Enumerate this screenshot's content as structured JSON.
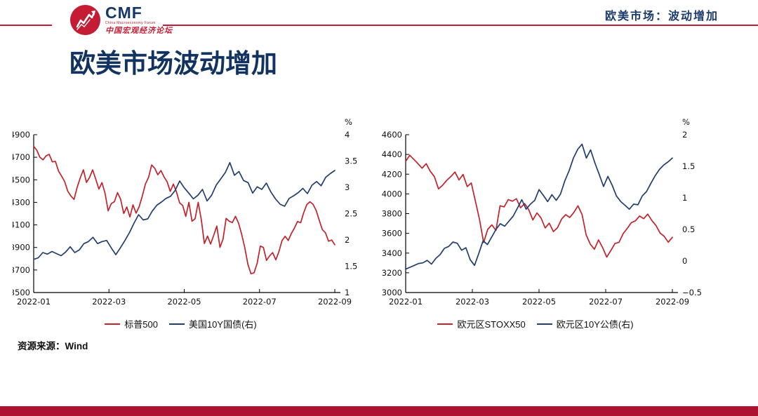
{
  "header": {
    "logo": {
      "acronym": "CMF",
      "subtitle_en": "China Macroeconomy Forum",
      "subtitle_cn": "中国宏观经济论坛"
    },
    "section_label": "欧美市场：波动增加"
  },
  "title": "欧美市场波动增加",
  "source_note": "资源来源：Wind",
  "colors": {
    "accent_red": "#c01d3a",
    "bottom_bar": "#ad1230",
    "line_red": "#c3222a",
    "line_blue": "#223d6f",
    "navy_text": "#123360"
  },
  "chart_data": [
    {
      "type": "line",
      "title": "",
      "x_ticks": [
        "2022-01",
        "2022-03",
        "2022-05",
        "2022-07",
        "2022-09"
      ],
      "left_axis": {
        "min": 3500,
        "max": 4900,
        "step": 200
      },
      "right_axis": {
        "min": 1,
        "max": 4,
        "step": 0.5,
        "unit": "%"
      },
      "grid": false,
      "legend_position": "bottom",
      "series": [
        {
          "name": "标普500",
          "axis": "left",
          "color": "#c3222a",
          "values": [
            4797,
            4763,
            4700,
            4677,
            4713,
            4726,
            4659,
            4663,
            4577,
            4532,
            4483,
            4398,
            4356,
            4326,
            4432,
            4516,
            4589,
            4477,
            4521,
            4588,
            4504,
            4418,
            4475,
            4380,
            4225,
            4289,
            4306,
            4386,
            4328,
            4201,
            4259,
            4170,
            4278,
            4204,
            4263,
            4357,
            4463,
            4520,
            4631,
            4602,
            4545,
            4582,
            4525,
            4481,
            4397,
            4462,
            4393,
            4296,
            4272,
            4175,
            4300,
            4132,
            4155,
            4300,
            4147,
            3935,
            4001,
            3930,
            4008,
            4089,
            3901,
            3974,
            4158,
            4132,
            4121,
            4176,
            4116,
            4017,
            3900,
            3750,
            3667,
            3675,
            3760,
            3912,
            3900,
            3785,
            3825,
            3854,
            3790,
            3863,
            3960,
            3999,
            3962,
            4023,
            4072,
            4130,
            4119,
            4210,
            4280,
            4305,
            4283,
            4228,
            4140,
            4058,
            4030,
            3955,
            3966,
            3924
          ]
        },
        {
          "name": "美国10Y国债(右)",
          "axis": "right",
          "color": "#223d6f",
          "values": [
            1.63,
            1.66,
            1.76,
            1.73,
            1.78,
            1.74,
            1.7,
            1.77,
            1.87,
            1.76,
            1.81,
            1.93,
            1.97,
            2.05,
            1.93,
            1.97,
            1.99,
            1.85,
            1.72,
            1.85,
            1.99,
            2.14,
            2.32,
            2.48,
            2.38,
            2.4,
            2.55,
            2.66,
            2.72,
            2.79,
            2.83,
            2.94,
            3.12,
            2.99,
            2.89,
            2.78,
            2.85,
            2.96,
            2.74,
            2.85,
            3.04,
            3.16,
            3.28,
            3.47,
            3.23,
            3.3,
            3.13,
            3.09,
            2.89,
            3.01,
            2.96,
            3.08,
            2.91,
            2.78,
            2.68,
            2.64,
            2.79,
            2.84,
            2.9,
            2.98,
            2.88,
            3.04,
            3.11,
            3.03,
            3.19,
            3.26,
            3.32
          ]
        }
      ]
    },
    {
      "type": "line",
      "title": "",
      "x_ticks": [
        "2022-01",
        "2022-03",
        "2022-05",
        "2022-07",
        "2022-09"
      ],
      "left_axis": {
        "min": 3000,
        "max": 4600,
        "step": 200
      },
      "right_axis": {
        "min": -0.5,
        "max": 2,
        "step": 0.5,
        "unit": "%"
      },
      "grid": false,
      "legend_position": "bottom",
      "series": [
        {
          "name": "欧元区STOXX50",
          "axis": "left",
          "color": "#c3222a",
          "values": [
            4330,
            4392,
            4350,
            4306,
            4260,
            4306,
            4229,
            4175,
            4050,
            4087,
            4137,
            4175,
            4222,
            4141,
            4197,
            4074,
            4111,
            3925,
            3741,
            3506,
            3640,
            3686,
            3629,
            3880,
            3868,
            3942,
            3926,
            3951,
            3859,
            3902,
            3839,
            3735,
            3807,
            3756,
            3655,
            3703,
            3618,
            3657,
            3745,
            3789,
            3761,
            3813,
            3879,
            3789,
            3583,
            3490,
            3439,
            3533,
            3455,
            3359,
            3425,
            3497,
            3509,
            3596,
            3650,
            3708,
            3727,
            3776,
            3749,
            3795,
            3730,
            3680,
            3603,
            3570,
            3510,
            3560
          ]
        },
        {
          "name": "欧元区10Y公债(右)",
          "axis": "right",
          "color": "#223d6f",
          "values": [
            -0.13,
            -0.1,
            -0.07,
            -0.04,
            -0.03,
            0.01,
            -0.05,
            0.04,
            0.1,
            0.2,
            0.23,
            0.3,
            0.28,
            0.17,
            0.21,
            0.02,
            -0.07,
            0.12,
            0.32,
            0.26,
            0.38,
            0.5,
            0.59,
            0.55,
            0.63,
            0.71,
            0.84,
            0.97,
            0.82,
            0.9,
            0.96,
            1.13,
            1.04,
            0.94,
            1.05,
            0.96,
            1.06,
            1.27,
            1.43,
            1.63,
            1.77,
            1.85,
            1.63,
            1.76,
            1.55,
            1.37,
            1.18,
            1.34,
            1.2,
            1.03,
            0.94,
            0.88,
            0.82,
            0.9,
            0.89,
            1.03,
            1.1,
            1.23,
            1.35,
            1.45,
            1.52,
            1.57,
            1.63
          ]
        }
      ]
    }
  ]
}
